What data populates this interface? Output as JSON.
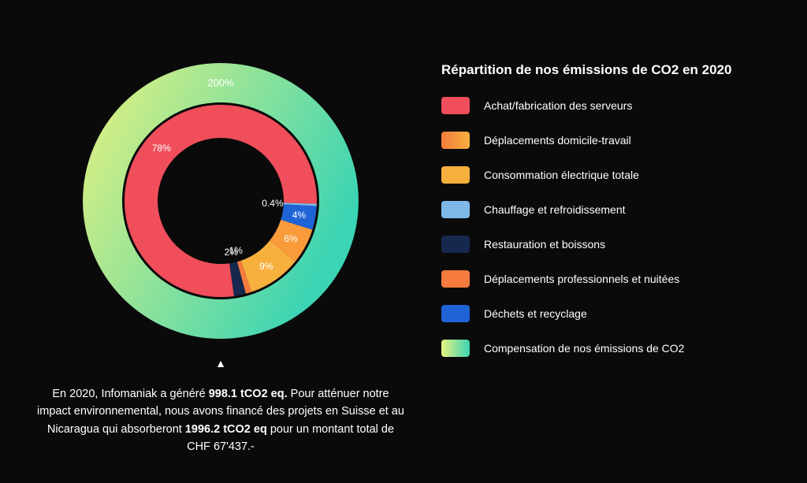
{
  "chart": {
    "type": "donut-double-ring",
    "size": 360,
    "background": "#0a0a0a",
    "outer_ring": {
      "value": 200,
      "label": "200%",
      "gradient_from": "#e9f27e",
      "gradient_to": "#3bd4b4",
      "inner_radius": 125,
      "outer_radius": 175
    },
    "inner_ring": {
      "inner_radius": 80,
      "outer_radius": 122,
      "slices": [
        {
          "label": "78%",
          "value": 78,
          "color": "#f04e5a"
        },
        {
          "label": "0.4%",
          "value": 0.4,
          "color": "#7eb8e8"
        },
        {
          "label": "4%",
          "value": 4,
          "color": "#1f63d6"
        },
        {
          "label": "6%",
          "value": 6,
          "color": "#f99b3a"
        },
        {
          "label": "9%",
          "value": 9,
          "color": "#f6b03e"
        },
        {
          "label": "1%",
          "value": 1,
          "color": "#f57b3e"
        },
        {
          "label": "2%",
          "value": 2,
          "color": "#17284f"
        }
      ],
      "start_angle_deg": 172
    },
    "label_fontsize": 12,
    "label_color": "#ffffff"
  },
  "legend": {
    "title": "Répartition de nos émissions de CO2 en 2020",
    "items": [
      {
        "label": "Achat/fabrication des serveurs",
        "swatch": {
          "type": "solid",
          "color": "#f04e5a"
        }
      },
      {
        "label": "Déplacements domicile-travail",
        "swatch": {
          "type": "gradient",
          "from": "#f57b3e",
          "to": "#f6b03e"
        }
      },
      {
        "label": "Consommation électrique totale",
        "swatch": {
          "type": "solid",
          "color": "#f6b03e"
        }
      },
      {
        "label": "Chauffage et refroidissement",
        "swatch": {
          "type": "solid",
          "color": "#7eb8e8"
        }
      },
      {
        "label": "Restauration et boissons",
        "swatch": {
          "type": "solid",
          "color": "#17284f"
        }
      },
      {
        "label": "Déplacements professionnels et nuitées",
        "swatch": {
          "type": "solid",
          "color": "#f57b3e"
        }
      },
      {
        "label": "Déchets et recyclage",
        "swatch": {
          "type": "solid",
          "color": "#1f63d6"
        }
      },
      {
        "label": "Compensation de nos émissions de CO2",
        "swatch": {
          "type": "gradient",
          "from": "#e9f27e",
          "to": "#3bd4b4"
        }
      }
    ],
    "title_fontsize": 17,
    "item_fontsize": 14,
    "swatch_width": 36,
    "swatch_height": 22,
    "swatch_radius": 4
  },
  "marker_symbol": "▲",
  "caption": {
    "pre": "En 2020, Infomaniak a généré ",
    "b1": "998.1 tCO2 eq.",
    "mid": " Pour atténuer notre impact environnemental, nous avons financé des projets en Suisse et au Nicaragua qui absorberont ",
    "b2": "1996.2 tCO2 eq",
    "post": " pour un montant total de CHF 67'437.-"
  }
}
